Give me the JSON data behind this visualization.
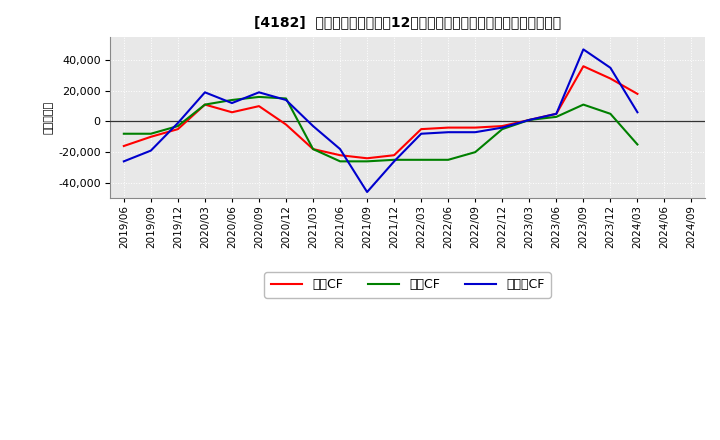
{
  "title": "[4182]  キャッシュフローの12か月移動合計の対前年同期増減額の推移",
  "ylabel": "（百万円）",
  "background_color": "#ffffff",
  "plot_background_color": "#e8e8e8",
  "grid_color": "#ffffff",
  "legend_labels": [
    "営業CF",
    "投資CF",
    "フリーCF"
  ],
  "line_colors": [
    "#ff0000",
    "#008000",
    "#0000cd"
  ],
  "x_labels": [
    "2019/06",
    "2019/09",
    "2019/12",
    "2020/03",
    "2020/06",
    "2020/09",
    "2020/12",
    "2021/03",
    "2021/06",
    "2021/09",
    "2021/12",
    "2022/03",
    "2022/06",
    "2022/09",
    "2022/12",
    "2023/03",
    "2023/06",
    "2023/09",
    "2023/12",
    "2024/03",
    "2024/06",
    "2024/09"
  ],
  "営業CF": [
    -16000,
    -10000,
    -5000,
    11000,
    6000,
    10000,
    -2000,
    -18000,
    -22000,
    -24000,
    -22000,
    -5000,
    -4000,
    -4000,
    -3000,
    1000,
    5000,
    36000,
    28000,
    18000,
    null,
    null
  ],
  "投資CF": [
    -8000,
    -8000,
    -3000,
    11000,
    14000,
    16000,
    15000,
    -18000,
    -26000,
    -26000,
    -25000,
    -25000,
    -25000,
    -20000,
    -5000,
    1000,
    3000,
    11000,
    5000,
    -15000,
    null,
    null
  ],
  "フリーCF": [
    -26000,
    -19000,
    -1000,
    19000,
    12000,
    19000,
    14000,
    -3000,
    -18000,
    -46000,
    -26000,
    -8000,
    -7000,
    -7000,
    -4000,
    1000,
    5000,
    47000,
    35000,
    6000,
    null,
    null
  ],
  "ylim": [
    -50000,
    55000
  ],
  "yticks": [
    -40000,
    -20000,
    0,
    20000,
    40000
  ]
}
